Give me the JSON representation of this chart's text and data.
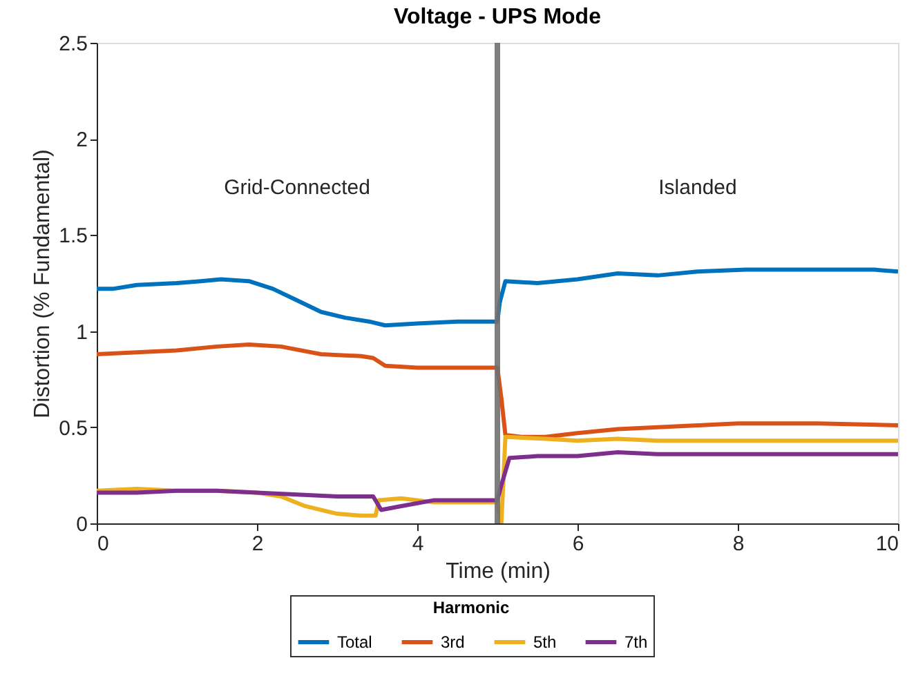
{
  "chart_data": {
    "type": "line",
    "title": "Voltage - UPS Mode",
    "xlabel": "Time (min)",
    "ylabel": "Distortion (% Fundamental)",
    "legend_title": "Harmonic",
    "legend": "bottom",
    "grid": false,
    "line_style": "solid",
    "marker": "none",
    "xlim": [
      0,
      10
    ],
    "ylim": [
      0,
      2.5
    ],
    "xticks": [
      0,
      2,
      4,
      6,
      8,
      10
    ],
    "yticks": [
      0,
      0.5,
      1,
      1.5,
      2,
      2.5
    ],
    "ref_lines": [
      {
        "axis": "x",
        "value": 5,
        "label": null,
        "color": "#707070"
      }
    ],
    "annotations": [
      "Grid-Connected",
      "Islanded"
    ],
    "series": [
      {
        "name": "Total",
        "color": "#0072bd",
        "x": [
          0,
          0.2,
          0.5,
          1,
          1.3,
          1.55,
          1.9,
          2.2,
          2.5,
          2.8,
          3.1,
          3.4,
          3.6,
          4,
          4.5,
          5,
          5.03,
          5.1,
          5.5,
          6,
          6.5,
          7,
          7.5,
          8.1,
          9,
          9.7,
          10
        ],
        "values": [
          1.22,
          1.22,
          1.24,
          1.25,
          1.26,
          1.27,
          1.26,
          1.22,
          1.16,
          1.1,
          1.07,
          1.05,
          1.03,
          1.04,
          1.05,
          1.05,
          1.15,
          1.26,
          1.25,
          1.27,
          1.3,
          1.29,
          1.31,
          1.32,
          1.32,
          1.32,
          1.31
        ]
      },
      {
        "name": "3rd",
        "color": "#d95319",
        "x": [
          0,
          0.5,
          1,
          1.5,
          1.9,
          2.3,
          2.8,
          3.3,
          3.45,
          3.6,
          4,
          4.5,
          5,
          5.05,
          5.1,
          5.3,
          5.6,
          6,
          6.5,
          7,
          7.5,
          8,
          9,
          10
        ],
        "values": [
          0.88,
          0.89,
          0.9,
          0.92,
          0.93,
          0.92,
          0.88,
          0.87,
          0.86,
          0.82,
          0.81,
          0.81,
          0.81,
          0.65,
          0.46,
          0.45,
          0.45,
          0.47,
          0.49,
          0.5,
          0.51,
          0.52,
          0.52,
          0.51
        ]
      },
      {
        "name": "5th",
        "color": "#edb120",
        "x": [
          0,
          0.5,
          1,
          1.5,
          2,
          2.3,
          2.6,
          3,
          3.3,
          3.48,
          3.52,
          3.8,
          4.2,
          4.5,
          5,
          5.05,
          5.1,
          5.6,
          6,
          6.5,
          7,
          8,
          9,
          10
        ],
        "values": [
          0.17,
          0.18,
          0.17,
          0.17,
          0.16,
          0.14,
          0.09,
          0.05,
          0.04,
          0.04,
          0.12,
          0.13,
          0.11,
          0.11,
          0.11,
          0.0,
          0.45,
          0.44,
          0.43,
          0.44,
          0.43,
          0.43,
          0.43,
          0.43
        ]
      },
      {
        "name": "7th",
        "color": "#7e2f8e",
        "x": [
          0,
          0.5,
          1,
          1.5,
          2,
          2.5,
          3,
          3.45,
          3.55,
          3.8,
          4.2,
          4.6,
          5,
          5.05,
          5.15,
          5.5,
          6,
          6.5,
          7,
          8,
          9,
          10
        ],
        "values": [
          0.16,
          0.16,
          0.17,
          0.17,
          0.16,
          0.15,
          0.14,
          0.14,
          0.07,
          0.09,
          0.12,
          0.12,
          0.12,
          0.2,
          0.34,
          0.35,
          0.35,
          0.37,
          0.36,
          0.36,
          0.36,
          0.36
        ]
      }
    ]
  }
}
